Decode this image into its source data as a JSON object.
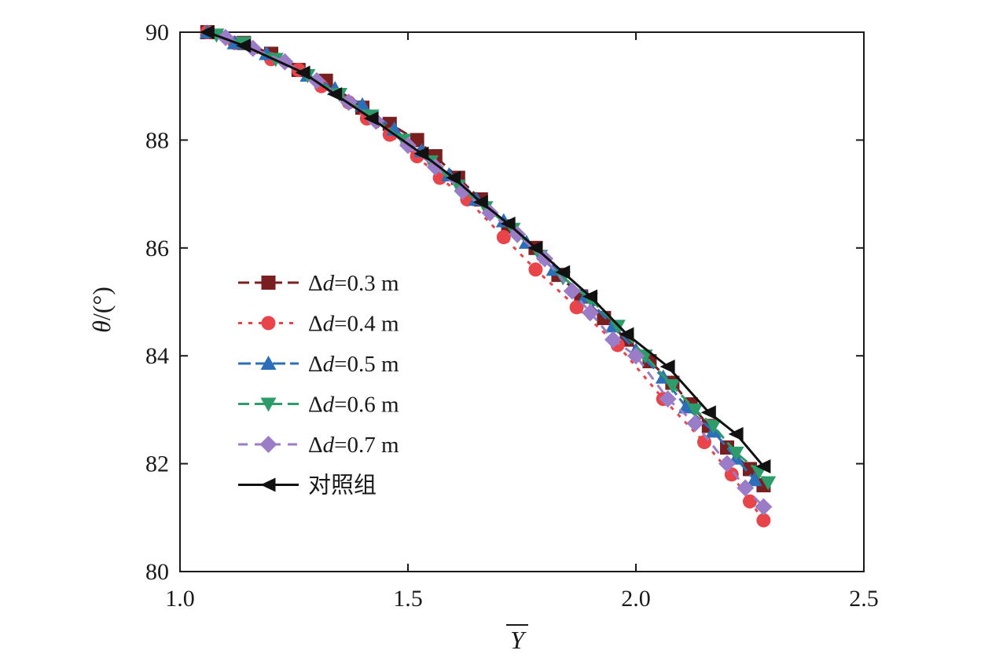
{
  "chart_data": {
    "type": "line",
    "xlabel": "Y",
    "ylabel_symbol": "θ",
    "ylabel_unit": "/(°)",
    "xlim": [
      1.0,
      2.5
    ],
    "ylim": [
      80,
      90
    ],
    "xticks": [
      1.0,
      1.5,
      2.0,
      2.5
    ],
    "xtick_labels": [
      "1.0",
      "1.5",
      "2.0",
      "2.5"
    ],
    "yticks": [
      80,
      82,
      84,
      86,
      88,
      90
    ],
    "ytick_labels": [
      "80",
      "82",
      "84",
      "86",
      "88",
      "90"
    ],
    "grid": false,
    "legend_position": "left-middle",
    "series": [
      {
        "name": "Δd=0.3 m",
        "label_prefix": "Δ",
        "label_var": "d",
        "label_suffix": "=0.3 m",
        "color": "#7a1f1f",
        "marker": "square",
        "dash": "14,7",
        "x": [
          1.06,
          1.14,
          1.2,
          1.26,
          1.32,
          1.4,
          1.46,
          1.52,
          1.56,
          1.61,
          1.66,
          1.72,
          1.78,
          1.83,
          1.88,
          1.93,
          1.98,
          2.03,
          2.08,
          2.12,
          2.16,
          2.2,
          2.25,
          2.28
        ],
        "y": [
          90.0,
          89.8,
          89.6,
          89.3,
          89.1,
          88.6,
          88.3,
          88.0,
          87.7,
          87.3,
          86.9,
          86.4,
          86.0,
          85.5,
          85.1,
          84.7,
          84.3,
          83.9,
          83.5,
          83.1,
          82.7,
          82.3,
          81.9,
          81.6
        ]
      },
      {
        "name": "Δd=0.4 m",
        "label_prefix": "Δ",
        "label_var": "d",
        "label_suffix": "=0.4 m",
        "color": "#e8454a",
        "marker": "circle",
        "dash": "5,8",
        "x": [
          1.06,
          1.12,
          1.2,
          1.26,
          1.31,
          1.37,
          1.41,
          1.46,
          1.52,
          1.57,
          1.63,
          1.71,
          1.78,
          1.87,
          1.96,
          2.06,
          2.15,
          2.21,
          2.25,
          2.28
        ],
        "y": [
          90.0,
          89.8,
          89.5,
          89.3,
          89.0,
          88.7,
          88.4,
          88.1,
          87.7,
          87.3,
          86.9,
          86.2,
          85.6,
          84.9,
          84.2,
          83.2,
          82.4,
          81.8,
          81.3,
          80.95
        ]
      },
      {
        "name": "Δd=0.5 m",
        "label_prefix": "Δ",
        "label_var": "d",
        "label_suffix": "=0.5 m",
        "color": "#2d6eb8",
        "marker": "triangle-up",
        "dash": "16,6",
        "x": [
          1.06,
          1.12,
          1.19,
          1.28,
          1.34,
          1.4,
          1.47,
          1.53,
          1.59,
          1.65,
          1.71,
          1.76,
          1.82,
          1.89,
          1.95,
          2.0,
          2.06,
          2.11,
          2.17,
          2.22,
          2.26
        ],
        "y": [
          90.0,
          89.8,
          89.6,
          89.2,
          88.95,
          88.65,
          88.2,
          87.8,
          87.35,
          86.9,
          86.5,
          86.1,
          85.6,
          85.1,
          84.55,
          84.1,
          83.6,
          83.05,
          82.6,
          82.1,
          81.7
        ]
      },
      {
        "name": "Δd=0.6 m",
        "label_prefix": "Δ",
        "label_var": "d",
        "label_suffix": "=0.6 m",
        "color": "#2e9c6a",
        "marker": "triangle-down",
        "dash": "14,7",
        "x": [
          1.08,
          1.14,
          1.21,
          1.28,
          1.35,
          1.42,
          1.49,
          1.55,
          1.61,
          1.67,
          1.73,
          1.79,
          1.84,
          1.9,
          1.96,
          2.02,
          2.08,
          2.13,
          2.17,
          2.22,
          2.27,
          2.29
        ],
        "y": [
          89.95,
          89.8,
          89.5,
          89.2,
          88.85,
          88.45,
          88.0,
          87.6,
          87.15,
          86.75,
          86.35,
          85.85,
          85.45,
          85.05,
          84.55,
          84.0,
          83.45,
          83.0,
          82.7,
          82.2,
          81.85,
          81.65
        ]
      },
      {
        "name": "Δd=0.7 m",
        "label_prefix": "Δ",
        "label_var": "d",
        "label_suffix": "=0.7 m",
        "color": "#9b7cc6",
        "marker": "diamond",
        "dash": "12,9",
        "x": [
          1.1,
          1.16,
          1.23,
          1.3,
          1.37,
          1.43,
          1.5,
          1.56,
          1.62,
          1.68,
          1.74,
          1.8,
          1.86,
          1.9,
          1.95,
          2.0,
          2.07,
          2.13,
          2.2,
          2.24,
          2.28
        ],
        "y": [
          89.9,
          89.7,
          89.45,
          89.1,
          88.7,
          88.35,
          87.9,
          87.5,
          87.05,
          86.65,
          86.25,
          85.8,
          85.2,
          84.8,
          84.3,
          84.0,
          83.2,
          82.75,
          82.0,
          81.55,
          81.2
        ]
      },
      {
        "name": "对照组",
        "label_prefix": "",
        "label_var": "",
        "label_suffix": "对照组",
        "color": "#111111",
        "marker": "triangle-left",
        "dash": "",
        "x": [
          1.06,
          1.14,
          1.27,
          1.34,
          1.42,
          1.53,
          1.6,
          1.66,
          1.72,
          1.78,
          1.84,
          1.9,
          1.98,
          2.07,
          2.16,
          2.22,
          2.28
        ],
        "y": [
          90.0,
          89.75,
          89.25,
          88.85,
          88.4,
          87.75,
          87.3,
          86.85,
          86.45,
          86.0,
          85.55,
          85.1,
          84.4,
          83.8,
          82.95,
          82.55,
          81.95
        ]
      }
    ]
  }
}
